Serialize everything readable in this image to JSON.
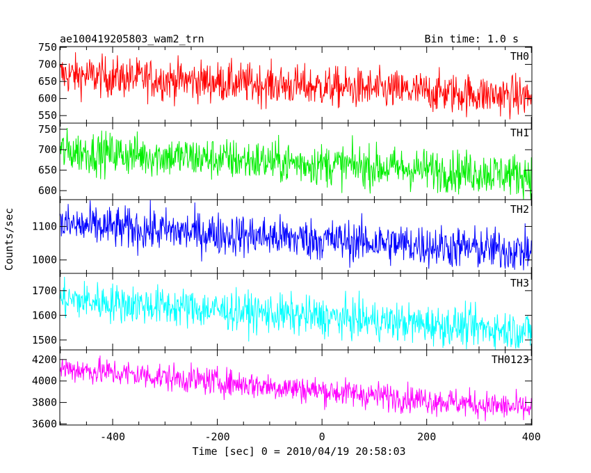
{
  "header": {
    "left": "ae100419205803_wam2_trn",
    "right": "Bin time: 1.0 s"
  },
  "axes": {
    "xlabel": "Time [sec] 0 = 2010/04/19 20:58:03",
    "ylabel": "Counts/sec"
  },
  "chart_data": {
    "type": "line",
    "x_range": [
      -501,
      401
    ],
    "x_ticks": [
      -400,
      -200,
      0,
      200,
      400
    ],
    "bin_time_s": 1.0,
    "panels": [
      {
        "name": "TH0",
        "color": "#ff0000",
        "ylim": [
          528,
          752
        ],
        "y_ticks": [
          550,
          600,
          650,
          700,
          750
        ],
        "trend": {
          "start": 670,
          "end": 605,
          "noise": 30
        },
        "series_summary": {
          "x_start": -500,
          "x_end": 400,
          "y_start_approx": 670,
          "y_end_approx": 605
        }
      },
      {
        "name": "TH1",
        "color": "#00ee00",
        "ylim": [
          578,
          765
        ],
        "y_ticks": [
          600,
          650,
          700,
          750
        ],
        "trend": {
          "start": 697,
          "end": 638,
          "noise": 26
        },
        "series_summary": {
          "x_start": -500,
          "x_end": 400,
          "y_start_approx": 697,
          "y_end_approx": 638
        }
      },
      {
        "name": "TH2",
        "color": "#0000ff",
        "ylim": [
          960,
          1180
        ],
        "y_ticks": [
          1000,
          1100
        ],
        "trend": {
          "start": 1105,
          "end": 1025,
          "noise": 32
        },
        "series_summary": {
          "x_start": -500,
          "x_end": 400,
          "y_start_approx": 1105,
          "y_end_approx": 1025
        }
      },
      {
        "name": "TH3",
        "color": "#00ffff",
        "ylim": [
          1460,
          1770
        ],
        "y_ticks": [
          1500,
          1600,
          1700
        ],
        "trend": {
          "start": 1665,
          "end": 1535,
          "noise": 40
        },
        "series_summary": {
          "x_start": -500,
          "x_end": 400,
          "y_start_approx": 1665,
          "y_end_approx": 1535
        }
      },
      {
        "name": "TH0123",
        "color": "#ff00ff",
        "ylim": [
          3590,
          4290
        ],
        "y_ticks": [
          3600,
          3800,
          4000,
          4200
        ],
        "trend": {
          "start": 4120,
          "end": 3740,
          "noise": 65
        },
        "series_summary": {
          "x_start": -500,
          "x_end": 400,
          "y_start_approx": 4120,
          "y_end_approx": 3740
        }
      }
    ]
  }
}
